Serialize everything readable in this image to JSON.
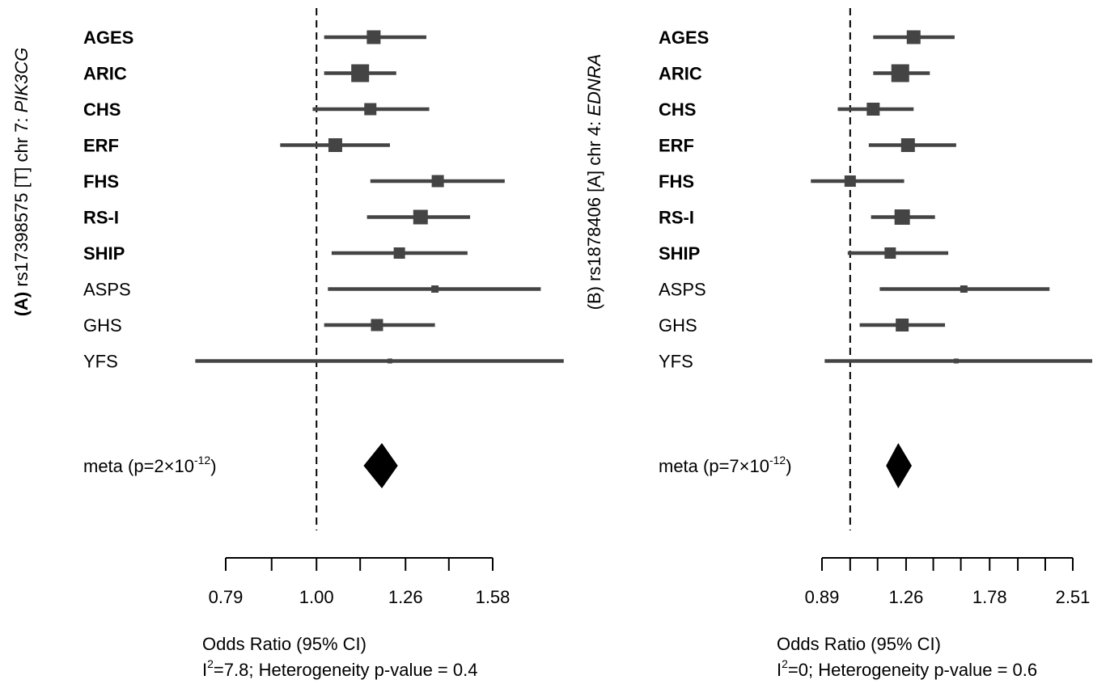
{
  "chart_data": [
    {
      "type": "forest",
      "panel_label": "(A)",
      "ylabel": "rs17398575 [T] chr 7: ",
      "ylabel_gene": "PIK3CG",
      "xlabel": "Odds Ratio (95% CI)",
      "heterogeneity": {
        "i2_label": "I",
        "i2_sup": "2",
        "text": "=7.8; Heterogeneity p-value = 0.4"
      },
      "scale": "log",
      "xlim": [
        0.79,
        1.58
      ],
      "xticks": [
        0.79,
        0.89,
        1.0,
        1.12,
        1.26,
        1.41,
        1.58
      ],
      "xtick_labels": [
        {
          "value": 0.79,
          "label": "0.79"
        },
        {
          "value": 1.0,
          "label": "1.00"
        },
        {
          "value": 1.26,
          "label": "1.26"
        },
        {
          "value": 1.58,
          "label": "1.58"
        }
      ],
      "reference_line": 1.0,
      "studies": [
        {
          "name": "AGES",
          "bold": true,
          "or": 1.16,
          "lower": 1.02,
          "upper": 1.33,
          "weight": 17
        },
        {
          "name": "ARIC",
          "bold": true,
          "or": 1.12,
          "lower": 1.02,
          "upper": 1.23,
          "weight": 22
        },
        {
          "name": "CHS",
          "bold": true,
          "or": 1.15,
          "lower": 0.99,
          "upper": 1.34,
          "weight": 15
        },
        {
          "name": "ERF",
          "bold": true,
          "or": 1.05,
          "lower": 0.91,
          "upper": 1.21,
          "weight": 17
        },
        {
          "name": "FHS",
          "bold": true,
          "or": 1.37,
          "lower": 1.15,
          "upper": 1.63,
          "weight": 15
        },
        {
          "name": "RS-I",
          "bold": true,
          "or": 1.31,
          "lower": 1.14,
          "upper": 1.49,
          "weight": 18
        },
        {
          "name": "SHIP",
          "bold": true,
          "or": 1.24,
          "lower": 1.04,
          "upper": 1.48,
          "weight": 14
        },
        {
          "name": "ASPS",
          "bold": false,
          "or": 1.36,
          "lower": 1.03,
          "upper": 1.79,
          "weight": 9
        },
        {
          "name": "GHS",
          "bold": false,
          "or": 1.17,
          "lower": 1.02,
          "upper": 1.36,
          "weight": 15
        },
        {
          "name": "YFS",
          "bold": false,
          "or": 1.21,
          "lower": 0.73,
          "upper": 1.9,
          "weight": 6
        }
      ],
      "meta": {
        "label": "meta (p=2×10",
        "p_exponent": "-12",
        "label_end": ")",
        "or": 1.185,
        "lower": 1.13,
        "upper": 1.235
      }
    },
    {
      "type": "forest",
      "panel_label": "(B)",
      "ylabel": "rs1878406 [A] chr 4: ",
      "ylabel_gene": "EDNRA",
      "xlabel": "Odds Ratio (95% CI)",
      "heterogeneity": {
        "i2_label": "I",
        "i2_sup": "2",
        "text": "=0; Heterogeneity p-value = 0.6"
      },
      "scale": "log",
      "xlim": [
        0.89,
        2.51
      ],
      "xticks": [
        0.89,
        1.0,
        1.12,
        1.26,
        1.41,
        1.58,
        1.78,
        2.0,
        2.24,
        2.51
      ],
      "xtick_labels": [
        {
          "value": 0.89,
          "label": "0.89"
        },
        {
          "value": 1.26,
          "label": "1.26"
        },
        {
          "value": 1.78,
          "label": "1.78"
        },
        {
          "value": 2.51,
          "label": "2.51"
        }
      ],
      "reference_line": 1.0,
      "studies": [
        {
          "name": "AGES",
          "bold": true,
          "or": 1.3,
          "lower": 1.1,
          "upper": 1.54,
          "weight": 17
        },
        {
          "name": "ARIC",
          "bold": true,
          "or": 1.23,
          "lower": 1.1,
          "upper": 1.39,
          "weight": 22
        },
        {
          "name": "CHS",
          "bold": true,
          "or": 1.1,
          "lower": 0.95,
          "upper": 1.3,
          "weight": 16
        },
        {
          "name": "ERF",
          "bold": true,
          "or": 1.27,
          "lower": 1.08,
          "upper": 1.55,
          "weight": 17
        },
        {
          "name": "FHS",
          "bold": true,
          "or": 1.0,
          "lower": 0.85,
          "upper": 1.25,
          "weight": 14
        },
        {
          "name": "RS-I",
          "bold": true,
          "or": 1.24,
          "lower": 1.09,
          "upper": 1.42,
          "weight": 19
        },
        {
          "name": "SHIP",
          "bold": true,
          "or": 1.18,
          "lower": 0.99,
          "upper": 1.5,
          "weight": 14
        },
        {
          "name": "ASPS",
          "bold": false,
          "or": 1.6,
          "lower": 1.13,
          "upper": 2.28,
          "weight": 9
        },
        {
          "name": "GHS",
          "bold": false,
          "or": 1.24,
          "lower": 1.04,
          "upper": 1.48,
          "weight": 16
        },
        {
          "name": "YFS",
          "bold": false,
          "or": 1.55,
          "lower": 0.9,
          "upper": 2.72,
          "weight": 6
        }
      ],
      "meta": {
        "label": "meta (p=7×10",
        "p_exponent": "-12",
        "label_end": ")",
        "or": 1.22,
        "lower": 1.16,
        "upper": 1.29
      }
    }
  ]
}
